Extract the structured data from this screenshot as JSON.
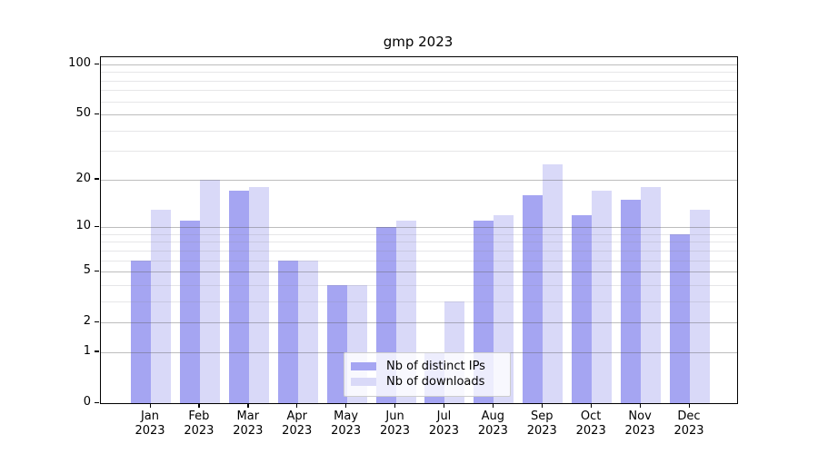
{
  "title": "gmp 2023",
  "chart_data": {
    "type": "bar",
    "title": "gmp 2023",
    "categories": [
      "Jan",
      "Feb",
      "Mar",
      "Apr",
      "May",
      "Jun",
      "Jul",
      "Aug",
      "Sep",
      "Oct",
      "Nov",
      "Dec"
    ],
    "year_label": "2023",
    "series": [
      {
        "name": "Nb of distinct IPs",
        "color": "#a5a5f2",
        "values": [
          6,
          11,
          17,
          6,
          4,
          10,
          1,
          11,
          16,
          12,
          15,
          9
        ]
      },
      {
        "name": "Nb of downloads",
        "color": "#d9d9f8",
        "values": [
          13,
          20,
          18,
          6,
          4,
          11,
          3,
          12,
          25,
          17,
          18,
          13
        ]
      }
    ],
    "yscale": "log1p",
    "ylim": [
      0,
      110
    ],
    "yticks": [
      0,
      1,
      2,
      5,
      10,
      20,
      50,
      100
    ],
    "minor_yticks": [
      3,
      4,
      6,
      7,
      8,
      9,
      30,
      40,
      60,
      70,
      80,
      90
    ],
    "grid": true,
    "legend_position": "lower center",
    "colors": {
      "major_grid": "#b3b3b3",
      "minor_grid": "#e8e8e8",
      "spine": "#000000",
      "legend_border": "#cccccc",
      "background": "#ffffff"
    }
  }
}
